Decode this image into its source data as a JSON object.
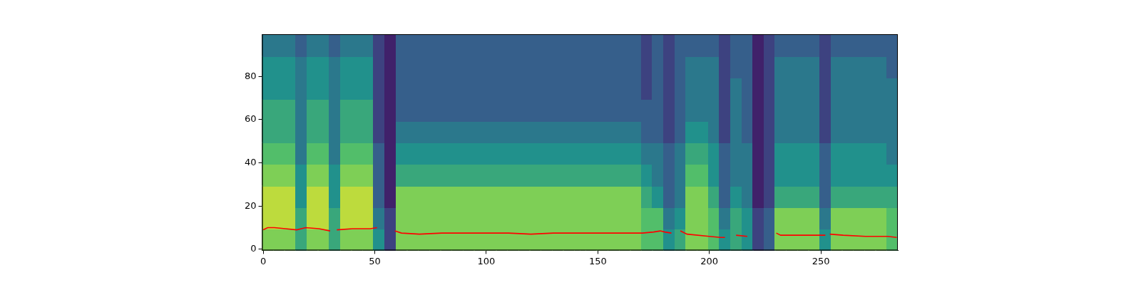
{
  "chart_data": {
    "type": "heatmap",
    "xlim": [
      -0.5,
      284.5
    ],
    "xticks": [
      0,
      50,
      100,
      150,
      200,
      250
    ],
    "ylim": [
      -0.5,
      99.5
    ],
    "yticks": [
      0,
      20,
      40,
      60,
      80
    ],
    "grid": false,
    "x_bins": [
      -0.5,
      4.5,
      9.5,
      14.5,
      19.5,
      24.5,
      29.5,
      34.5,
      39.5,
      44.5,
      49.5,
      54.5,
      59.5,
      64.5,
      69.5,
      74.5,
      79.5,
      84.5,
      89.5,
      94.5,
      99.5,
      104.5,
      109.5,
      114.5,
      119.5,
      124.5,
      129.5,
      134.5,
      139.5,
      144.5,
      149.5,
      154.5,
      159.5,
      164.5,
      169.5,
      174.5,
      179.5,
      184.5,
      189.5,
      194.5,
      199.5,
      204.5,
      209.5,
      214.5,
      219.5,
      224.5,
      229.5,
      234.5,
      239.5,
      244.5,
      249.5,
      254.5,
      259.5,
      264.5,
      269.5,
      274.5,
      279.5,
      284.5
    ],
    "y_bins": [
      -0.5,
      9.5,
      19.5,
      29.5,
      39.5,
      49.5,
      59.5,
      69.5,
      79.5,
      89.5,
      99.5
    ],
    "zlim": [
      0,
      10
    ],
    "cells": [
      [
        8,
        9,
        9,
        8,
        7,
        6,
        6,
        5,
        5,
        4
      ],
      [
        8,
        9,
        9,
        8,
        7,
        6,
        6,
        5,
        5,
        4
      ],
      [
        8,
        9,
        9,
        8,
        7,
        6,
        6,
        5,
        5,
        4
      ],
      [
        6,
        6,
        5,
        5,
        4,
        4,
        4,
        4,
        4,
        3
      ],
      [
        8,
        9,
        9,
        8,
        7,
        6,
        6,
        5,
        5,
        4
      ],
      [
        8,
        9,
        9,
        8,
        7,
        6,
        6,
        5,
        5,
        4
      ],
      [
        6,
        6,
        5,
        5,
        4,
        4,
        4,
        4,
        4,
        3
      ],
      [
        8,
        9,
        9,
        8,
        7,
        6,
        6,
        5,
        5,
        4
      ],
      [
        8,
        9,
        9,
        8,
        7,
        6,
        6,
        5,
        5,
        4
      ],
      [
        8,
        9,
        9,
        8,
        7,
        6,
        6,
        5,
        5,
        4
      ],
      [
        5,
        4,
        3,
        3,
        3,
        2,
        2,
        2,
        2,
        2
      ],
      [
        2,
        2,
        1,
        1,
        1,
        1,
        1,
        1,
        1,
        1
      ],
      [
        8,
        8,
        8,
        6,
        5,
        4,
        3,
        3,
        3,
        3
      ],
      [
        8,
        8,
        8,
        6,
        5,
        4,
        3,
        3,
        3,
        3
      ],
      [
        8,
        8,
        8,
        6,
        5,
        4,
        3,
        3,
        3,
        3
      ],
      [
        8,
        8,
        8,
        6,
        5,
        4,
        3,
        3,
        3,
        3
      ],
      [
        8,
        8,
        8,
        6,
        5,
        4,
        3,
        3,
        3,
        3
      ],
      [
        8,
        8,
        8,
        6,
        5,
        4,
        3,
        3,
        3,
        3
      ],
      [
        8,
        8,
        8,
        6,
        5,
        4,
        3,
        3,
        3,
        3
      ],
      [
        8,
        8,
        8,
        6,
        5,
        4,
        3,
        3,
        3,
        3
      ],
      [
        8,
        8,
        8,
        6,
        5,
        4,
        3,
        3,
        3,
        3
      ],
      [
        8,
        8,
        8,
        6,
        5,
        4,
        3,
        3,
        3,
        3
      ],
      [
        8,
        8,
        8,
        6,
        5,
        4,
        3,
        3,
        3,
        3
      ],
      [
        8,
        8,
        8,
        6,
        5,
        4,
        3,
        3,
        3,
        3
      ],
      [
        8,
        8,
        8,
        6,
        5,
        4,
        3,
        3,
        3,
        3
      ],
      [
        8,
        8,
        8,
        6,
        5,
        4,
        3,
        3,
        3,
        3
      ],
      [
        8,
        8,
        8,
        6,
        5,
        4,
        3,
        3,
        3,
        3
      ],
      [
        8,
        8,
        8,
        6,
        5,
        4,
        3,
        3,
        3,
        3
      ],
      [
        8,
        8,
        8,
        6,
        5,
        4,
        3,
        3,
        3,
        3
      ],
      [
        8,
        8,
        8,
        6,
        5,
        4,
        3,
        3,
        3,
        3
      ],
      [
        8,
        8,
        8,
        6,
        5,
        4,
        3,
        3,
        3,
        3
      ],
      [
        8,
        8,
        8,
        6,
        5,
        4,
        3,
        3,
        3,
        3
      ],
      [
        8,
        8,
        8,
        6,
        5,
        4,
        3,
        3,
        3,
        3
      ],
      [
        8,
        8,
        8,
        6,
        5,
        4,
        3,
        3,
        3,
        3
      ],
      [
        7,
        7,
        6,
        5,
        4,
        3,
        3,
        2,
        2,
        2
      ],
      [
        7,
        7,
        5,
        4,
        4,
        3,
        3,
        3,
        3,
        3
      ],
      [
        5,
        4,
        3,
        3,
        3,
        2,
        2,
        2,
        2,
        2
      ],
      [
        6,
        5,
        4,
        4,
        4,
        3,
        3,
        3,
        3,
        3
      ],
      [
        8,
        8,
        8,
        7,
        6,
        5,
        4,
        4,
        4,
        3
      ],
      [
        8,
        8,
        8,
        7,
        6,
        5,
        4,
        4,
        4,
        3
      ],
      [
        7,
        7,
        6,
        5,
        5,
        4,
        4,
        4,
        4,
        3
      ],
      [
        5,
        4,
        3,
        3,
        3,
        2,
        2,
        2,
        2,
        2
      ],
      [
        6,
        6,
        5,
        4,
        4,
        4,
        4,
        4,
        3,
        3
      ],
      [
        5,
        5,
        4,
        4,
        4,
        3,
        3,
        3,
        3,
        3
      ],
      [
        2,
        2,
        1,
        1,
        1,
        1,
        1,
        1,
        1,
        1
      ],
      [
        3,
        3,
        2,
        2,
        2,
        2,
        2,
        2,
        2,
        2
      ],
      [
        8,
        8,
        6,
        5,
        5,
        4,
        4,
        4,
        4,
        3
      ],
      [
        8,
        8,
        6,
        5,
        5,
        4,
        4,
        4,
        4,
        3
      ],
      [
        8,
        8,
        6,
        5,
        5,
        4,
        4,
        4,
        4,
        3
      ],
      [
        8,
        8,
        6,
        5,
        5,
        4,
        4,
        4,
        4,
        3
      ],
      [
        5,
        4,
        3,
        3,
        3,
        2,
        2,
        2,
        2,
        2
      ],
      [
        8,
        8,
        6,
        5,
        5,
        4,
        4,
        4,
        4,
        3
      ],
      [
        8,
        8,
        6,
        5,
        5,
        4,
        4,
        4,
        4,
        3
      ],
      [
        8,
        8,
        6,
        5,
        5,
        4,
        4,
        4,
        4,
        3
      ],
      [
        8,
        8,
        6,
        5,
        5,
        4,
        4,
        4,
        4,
        3
      ],
      [
        8,
        8,
        6,
        5,
        5,
        4,
        4,
        4,
        4,
        3
      ],
      [
        7,
        7,
        6,
        5,
        4,
        4,
        4,
        4,
        3,
        3
      ]
    ],
    "series": [
      {
        "type": "line",
        "color": "#ff0000",
        "x": [
          0,
          2,
          5,
          10,
          15,
          19,
          25,
          30,
          31.5,
          33,
          40,
          48,
          51,
          55,
          59,
          62,
          70,
          80,
          90,
          100,
          110,
          120,
          130,
          140,
          150,
          160,
          170,
          175,
          178,
          180,
          183,
          185,
          187,
          190,
          200,
          205,
          207,
          209.5,
          212,
          217,
          223,
          230,
          232,
          240,
          250,
          252,
          253,
          254,
          260,
          270,
          280,
          284
        ],
        "values": [
          9,
          10,
          10,
          9.5,
          9,
          10,
          9.5,
          8.5,
          null,
          9,
          9.5,
          9.5,
          10,
          null,
          8.5,
          7.5,
          7,
          7.5,
          7.5,
          7.5,
          7.5,
          7,
          7.5,
          7.5,
          7.5,
          7.5,
          7.5,
          8,
          8.5,
          8,
          7.5,
          null,
          8.5,
          7,
          6,
          5.5,
          5.5,
          null,
          6.5,
          6,
          null,
          7.5,
          6.5,
          6.5,
          6.5,
          6.5,
          null,
          7,
          6.5,
          6,
          6,
          5.5
        ]
      }
    ]
  }
}
